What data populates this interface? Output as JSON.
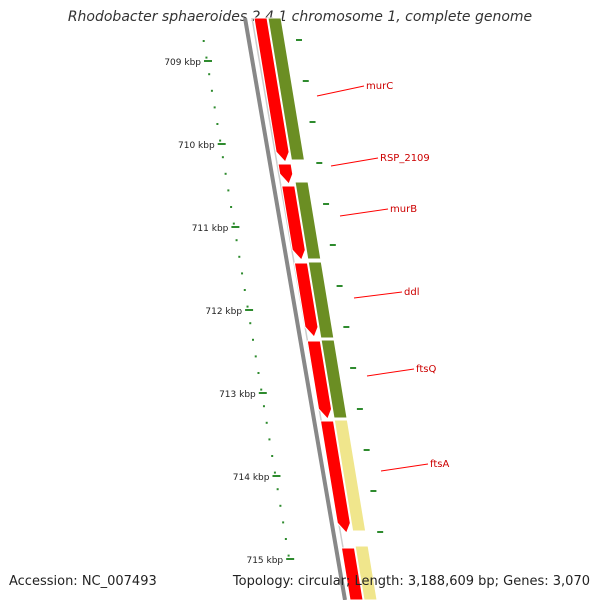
{
  "title": "Rhodobacter sphaeroides 2.4.1 chromosome 1, complete genome",
  "footer": {
    "accession": "Accession: NC_007493",
    "summary": "Topology: circular; Length: 3,188,609 bp; Genes: 3,070"
  },
  "scale": {
    "tick_labels": [
      "709 kbp",
      "710 kbp",
      "711 kbp",
      "712 kbp",
      "713 kbp",
      "714 kbp",
      "715 kbp"
    ],
    "tick_color": "#2e8b2e"
  },
  "genes": [
    {
      "name": "murC"
    },
    {
      "name": "RSP_2109"
    },
    {
      "name": "murB"
    },
    {
      "name": "ddl"
    },
    {
      "name": "ftsQ"
    },
    {
      "name": "ftsA"
    }
  ],
  "colors": {
    "cds_forward": "#ff0000",
    "gene_olive": "#6b8e23",
    "gene_pale": "#f0e68c",
    "backbone": "#888888",
    "label_line": "#ff0000",
    "label_text": "#cc0000"
  }
}
